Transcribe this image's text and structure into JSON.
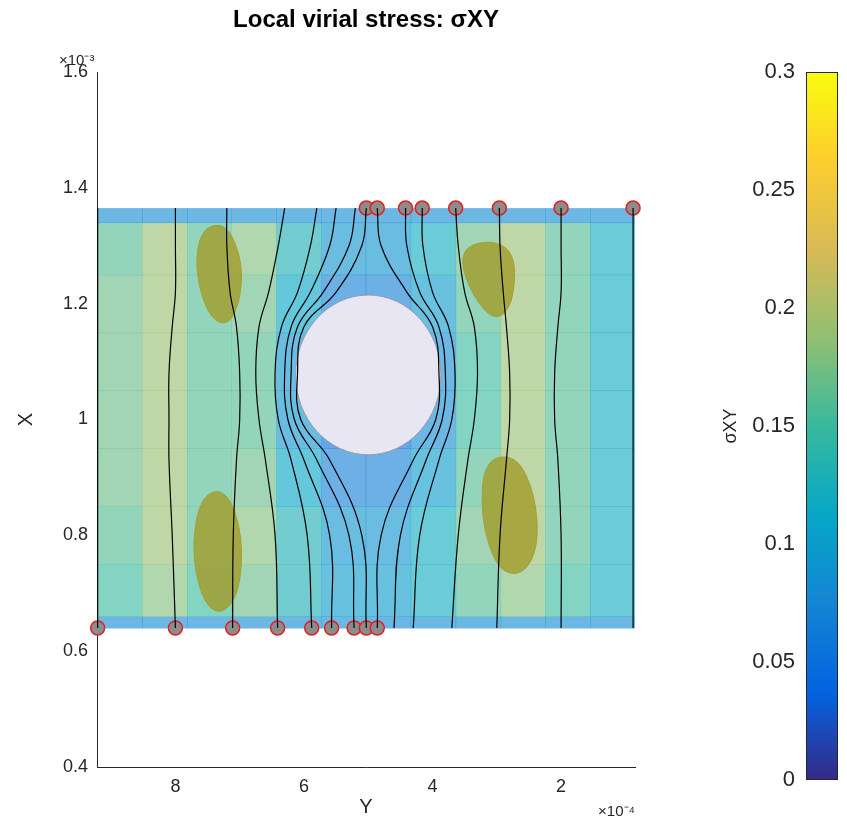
{
  "chart_data": {
    "type": "streamline",
    "title": "Local virial stress: σXY",
    "x_label": "Y",
    "y_label": "X",
    "x_exponent": "×10⁻⁴",
    "y_exponent": "×10⁻³",
    "xlim": [
      9.22,
      0.85
    ],
    "xticks": [
      2,
      4,
      6,
      8
    ],
    "ylim": [
      0.4,
      1.6
    ],
    "yticks": [
      0.4,
      0.6,
      0.8,
      1,
      1.2,
      1.4,
      1.6
    ],
    "grid": false,
    "heatmap": {
      "x_edges": [
        9.22,
        8.52,
        7.82,
        7.13,
        6.43,
        5.73,
        5.04,
        4.34,
        3.64,
        2.94,
        2.25,
        1.55,
        0.85
      ],
      "y_edges": [
        0.64,
        0.66,
        0.75,
        0.85,
        0.95,
        1.05,
        1.15,
        1.25,
        1.34,
        1.365
      ],
      "cells": [
        [
          0.08,
          0.08,
          0.08,
          0.08,
          0.08,
          0.08,
          0.08,
          0.08,
          0.08,
          0.08,
          0.08,
          0.08
        ],
        [
          0.15,
          0.18,
          0.15,
          0.17,
          0.13,
          0.1,
          0.1,
          0.12,
          0.16,
          0.18,
          0.15,
          0.12
        ],
        [
          0.16,
          0.19,
          0.16,
          0.18,
          0.13,
          0.09,
          0.09,
          0.12,
          0.17,
          0.19,
          0.16,
          0.12
        ],
        [
          0.17,
          0.19,
          0.16,
          0.17,
          0.11,
          0.07,
          0.07,
          0.1,
          0.16,
          0.19,
          0.16,
          0.12
        ],
        [
          0.17,
          0.19,
          0.16,
          0.16,
          0.09,
          0.05,
          0.05,
          0.08,
          0.15,
          0.19,
          0.16,
          0.12
        ],
        [
          0.17,
          0.19,
          0.16,
          0.16,
          0.09,
          0.05,
          0.05,
          0.08,
          0.15,
          0.19,
          0.16,
          0.12
        ],
        [
          0.17,
          0.19,
          0.16,
          0.17,
          0.11,
          0.07,
          0.07,
          0.1,
          0.16,
          0.19,
          0.16,
          0.12
        ],
        [
          0.16,
          0.19,
          0.16,
          0.18,
          0.13,
          0.09,
          0.09,
          0.12,
          0.17,
          0.19,
          0.16,
          0.12
        ],
        [
          0.08,
          0.08,
          0.08,
          0.08,
          0.08,
          0.08,
          0.08,
          0.08,
          0.08,
          0.08,
          0.08,
          0.08
        ]
      ]
    },
    "colorbar": {
      "label": "σXY",
      "range": [
        0,
        0.3
      ],
      "ticks": [
        0,
        0.05,
        0.1,
        0.15,
        0.2,
        0.25,
        0.3
      ]
    },
    "isosurfaces": {
      "color": "#a3a032",
      "polygons": [
        [
          [
            7.6,
            1.33
          ],
          [
            7.2,
            1.34
          ],
          [
            6.95,
            1.27
          ],
          [
            7.0,
            1.2
          ],
          [
            7.2,
            1.16
          ],
          [
            7.5,
            1.18
          ],
          [
            7.7,
            1.26
          ]
        ],
        [
          [
            3.5,
            1.3
          ],
          [
            3.0,
            1.31
          ],
          [
            2.7,
            1.28
          ],
          [
            2.75,
            1.2
          ],
          [
            3.0,
            1.17
          ],
          [
            3.3,
            1.2
          ],
          [
            3.55,
            1.26
          ]
        ],
        [
          [
            7.6,
            0.87
          ],
          [
            7.2,
            0.88
          ],
          [
            6.95,
            0.8
          ],
          [
            7.0,
            0.7
          ],
          [
            7.3,
            0.66
          ],
          [
            7.6,
            0.69
          ],
          [
            7.75,
            0.78
          ]
        ],
        [
          [
            3.2,
            0.93
          ],
          [
            2.7,
            0.94
          ],
          [
            2.4,
            0.87
          ],
          [
            2.35,
            0.78
          ],
          [
            2.6,
            0.73
          ],
          [
            3.0,
            0.74
          ],
          [
            3.25,
            0.83
          ]
        ]
      ]
    },
    "sphere": {
      "color": "#e8e6f3",
      "center": [
        5.0,
        1.077
      ],
      "radii": [
        1.13,
        0.138
      ]
    },
    "streamlines": {
      "color": "#000000",
      "x": [
        0.64,
        0.8,
        0.93,
        1.0,
        1.08,
        1.16,
        1.22,
        1.3,
        1.365
      ],
      "paths": [
        [
          9.21,
          9.21,
          9.21,
          9.21,
          9.21,
          9.21,
          9.21,
          9.21,
          9.21
        ],
        [
          8.0,
          8.05,
          8.1,
          8.1,
          8.1,
          8.05,
          8.0,
          8.0,
          8.0
        ],
        [
          7.11,
          7.1,
          7.05,
          7.0,
          7.0,
          7.05,
          7.15,
          7.2,
          7.2
        ],
        [
          6.41,
          6.45,
          6.6,
          6.7,
          6.75,
          6.7,
          6.55,
          6.4,
          6.3
        ],
        [
          5.88,
          5.95,
          6.2,
          6.4,
          6.45,
          6.35,
          6.1,
          5.9,
          5.8
        ],
        [
          5.57,
          5.6,
          6.0,
          6.25,
          6.3,
          6.2,
          5.9,
          5.6,
          5.5
        ],
        [
          5.22,
          5.3,
          5.8,
          6.15,
          6.2,
          6.1,
          5.7,
          5.3,
          5.2
        ],
        [
          5.03,
          5.1,
          5.6,
          6.05,
          6.1,
          6.0,
          5.5,
          5.1,
          5.03
        ],
        [
          4.86,
          4.8,
          4.3,
          3.95,
          3.9,
          4.0,
          4.4,
          4.8,
          4.86
        ],
        [
          4.6,
          4.5,
          4.1,
          3.85,
          3.8,
          3.9,
          4.2,
          4.4,
          4.42
        ],
        [
          4.3,
          4.2,
          3.9,
          3.7,
          3.65,
          3.75,
          4.0,
          4.15,
          4.16
        ],
        [
          3.7,
          3.6,
          3.45,
          3.35,
          3.3,
          3.35,
          3.5,
          3.6,
          3.64
        ],
        [
          3.0,
          2.95,
          2.85,
          2.8,
          2.8,
          2.85,
          2.9,
          2.95,
          2.96
        ],
        [
          2.0,
          2.0,
          2.05,
          2.1,
          2.1,
          2.05,
          2.0,
          2.0,
          2.0
        ],
        [
          0.88,
          0.88,
          0.88,
          0.88,
          0.88,
          0.88,
          0.88,
          0.88,
          0.88
        ]
      ]
    },
    "seeds": {
      "color": "#8c8c8c",
      "marker": "circle",
      "points": [
        [
          9.21,
          0.64
        ],
        [
          8.0,
          0.64
        ],
        [
          7.11,
          0.64
        ],
        [
          6.41,
          0.64
        ],
        [
          5.88,
          0.64
        ],
        [
          5.57,
          0.64
        ],
        [
          5.22,
          0.64
        ],
        [
          5.03,
          0.64
        ],
        [
          4.86,
          0.64
        ],
        [
          5.03,
          1.365
        ],
        [
          4.86,
          1.365
        ],
        [
          4.42,
          1.365
        ],
        [
          4.16,
          1.365
        ],
        [
          3.64,
          1.365
        ],
        [
          2.96,
          1.365
        ],
        [
          2.0,
          1.365
        ],
        [
          0.88,
          1.365
        ]
      ]
    }
  }
}
